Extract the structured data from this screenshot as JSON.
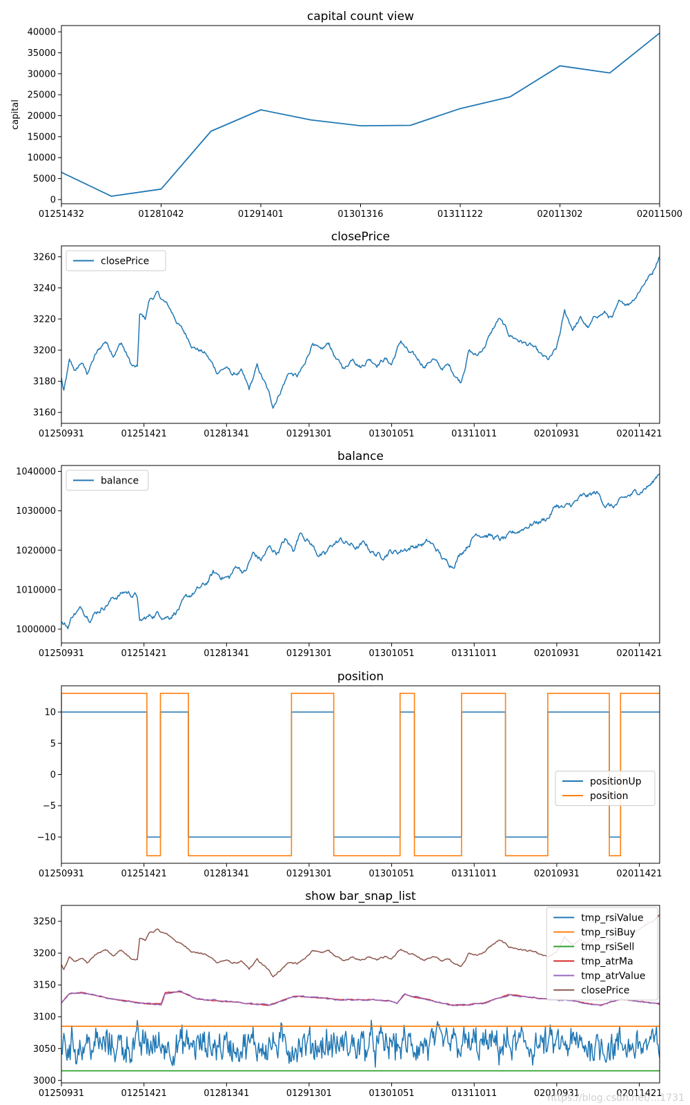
{
  "watermark": "https://blog.csdn.net/...1731",
  "colors": {
    "tmp_rsiValue": "#1f77b4",
    "tmp_rsiBuy": "#ff7f0e",
    "tmp_rsiSell": "#2ca02c",
    "tmp_atrMa": "#d62728",
    "tmp_atrValue": "#9467bd",
    "closePrice": "#8c564b",
    "blue": "#1f77b4",
    "orange": "#ff7f0e"
  },
  "chart_data": [
    {
      "type": "line",
      "title": "capital count view",
      "xlabel": "",
      "ylabel": "capital",
      "x": [
        "01251432",
        "",
        "01281042",
        "",
        "01291401",
        "",
        "01301316",
        "",
        "01311122",
        "",
        "02011302",
        "",
        "02011500"
      ],
      "series": [
        {
          "values": [
            6500,
            800,
            2500,
            16300,
            21400,
            19000,
            17600,
            17700,
            21700,
            24500,
            31900,
            30200,
            39700
          ]
        }
      ],
      "xticks": [
        "01251432",
        "01281042",
        "01291401",
        "01301316",
        "01311122",
        "02011302",
        "02011500"
      ],
      "yticks": [
        0,
        5000,
        10000,
        15000,
        20000,
        25000,
        30000,
        35000,
        40000
      ],
      "ylim": [
        -1000,
        41500
      ],
      "grid": false
    },
    {
      "type": "line",
      "title": "closePrice",
      "legend": [
        "closePrice"
      ],
      "legend_position": "upper left",
      "xticks": [
        "01250931",
        "01251421",
        "01281341",
        "01291301",
        "01301051",
        "01311011",
        "02010931",
        "02011421"
      ],
      "yticks": [
        3160,
        3180,
        3200,
        3220,
        3240,
        3260
      ],
      "ylim": [
        3153,
        3267
      ],
      "series": [
        {
          "name": "closePrice",
          "anchors": [
            [
              0,
              3182
            ],
            [
              3,
              3173
            ],
            [
              10,
              3192
            ],
            [
              18,
              3186
            ],
            [
              25,
              3192
            ],
            [
              32,
              3185
            ],
            [
              42,
              3196
            ],
            [
              55,
              3206
            ],
            [
              65,
              3198
            ],
            [
              75,
              3205
            ],
            [
              88,
              3190
            ],
            [
              95,
              3188
            ],
            [
              98,
              3222
            ],
            [
              105,
              3220
            ],
            [
              110,
              3232
            ],
            [
              120,
              3236
            ],
            [
              135,
              3227
            ],
            [
              150,
              3214
            ],
            [
              165,
              3203
            ],
            [
              180,
              3198
            ],
            [
              195,
              3186
            ],
            [
              205,
              3189
            ],
            [
              215,
              3184
            ],
            [
              225,
              3186
            ],
            [
              235,
              3174
            ],
            [
              245,
              3189
            ],
            [
              255,
              3178
            ],
            [
              265,
              3164
            ],
            [
              275,
              3175
            ],
            [
              285,
              3186
            ],
            [
              295,
              3183
            ],
            [
              305,
              3190
            ],
            [
              315,
              3206
            ],
            [
              325,
              3198
            ],
            [
              335,
              3204
            ],
            [
              345,
              3193
            ],
            [
              355,
              3188
            ],
            [
              365,
              3196
            ],
            [
              375,
              3190
            ],
            [
              385,
              3195
            ],
            [
              395,
              3192
            ],
            [
              405,
              3195
            ],
            [
              413,
              3191
            ],
            [
              425,
              3206
            ],
            [
              435,
              3198
            ],
            [
              445,
              3194
            ],
            [
              455,
              3190
            ],
            [
              465,
              3195
            ],
            [
              475,
              3188
            ],
            [
              485,
              3190
            ],
            [
              495,
              3183
            ],
            [
              500,
              3180
            ],
            [
              510,
              3200
            ],
            [
              520,
              3196
            ],
            [
              530,
              3203
            ],
            [
              540,
              3213
            ],
            [
              548,
              3220
            ],
            [
              560,
              3210
            ],
            [
              575,
              3206
            ],
            [
              590,
              3202
            ],
            [
              600,
              3196
            ],
            [
              610,
              3193
            ],
            [
              620,
              3200
            ],
            [
              630,
              3224
            ],
            [
              640,
              3214
            ],
            [
              650,
              3220
            ],
            [
              660,
              3214
            ],
            [
              670,
              3222
            ],
            [
              680,
              3224
            ],
            [
              690,
              3220
            ],
            [
              700,
              3231
            ],
            [
              710,
              3230
            ],
            [
              720,
              3236
            ],
            [
              730,
              3244
            ],
            [
              740,
              3250
            ],
            [
              749,
              3262
            ]
          ]
        }
      ],
      "n_points": 750,
      "grid": false
    },
    {
      "type": "line",
      "title": "balance",
      "legend": [
        "balance"
      ],
      "legend_position": "upper left",
      "xticks": [
        "01250931",
        "01251421",
        "01281341",
        "01291301",
        "01301051",
        "01311011",
        "02010931",
        "02011421"
      ],
      "yticks": [
        1000000,
        1010000,
        1020000,
        1030000,
        1040000
      ],
      "ylim": [
        996500,
        1041500
      ],
      "series": [
        {
          "name": "balance",
          "anchors": [
            [
              0,
              1001500
            ],
            [
              8,
              1000500
            ],
            [
              15,
              1004000
            ],
            [
              25,
              1005000
            ],
            [
              35,
              1003500
            ],
            [
              50,
              1005500
            ],
            [
              65,
              1008000
            ],
            [
              80,
              1009500
            ],
            [
              95,
              1008500
            ],
            [
              98,
              1001500
            ],
            [
              105,
              1002500
            ],
            [
              120,
              1004000
            ],
            [
              135,
              1003500
            ],
            [
              150,
              1006000
            ],
            [
              165,
              1009000
            ],
            [
              180,
              1011000
            ],
            [
              190,
              1014000
            ],
            [
              200,
              1013500
            ],
            [
              210,
              1013000
            ],
            [
              220,
              1016000
            ],
            [
              230,
              1014500
            ],
            [
              240,
              1019000
            ],
            [
              250,
              1017500
            ],
            [
              260,
              1020500
            ],
            [
              270,
              1019500
            ],
            [
              280,
              1022500
            ],
            [
              290,
              1020000
            ],
            [
              300,
              1025000
            ],
            [
              310,
              1022500
            ],
            [
              320,
              1019500
            ],
            [
              330,
              1018500
            ],
            [
              340,
              1021500
            ],
            [
              350,
              1022500
            ],
            [
              360,
              1021500
            ],
            [
              370,
              1020500
            ],
            [
              380,
              1021500
            ],
            [
              390,
              1019500
            ],
            [
              400,
              1018500
            ],
            [
              410,
              1020000
            ],
            [
              420,
              1019500
            ],
            [
              430,
              1020500
            ],
            [
              440,
              1021000
            ],
            [
              450,
              1021500
            ],
            [
              460,
              1022000
            ],
            [
              470,
              1020000
            ],
            [
              480,
              1017000
            ],
            [
              490,
              1016500
            ],
            [
              500,
              1019500
            ],
            [
              510,
              1022000
            ],
            [
              520,
              1024500
            ],
            [
              530,
              1024500
            ],
            [
              540,
              1023500
            ],
            [
              550,
              1022500
            ],
            [
              560,
              1023000
            ],
            [
              570,
              1024500
            ],
            [
              580,
              1026000
            ],
            [
              590,
              1027000
            ],
            [
              600,
              1027500
            ],
            [
              610,
              1028500
            ],
            [
              620,
              1031500
            ],
            [
              630,
              1030500
            ],
            [
              640,
              1031500
            ],
            [
              650,
              1033000
            ],
            [
              660,
              1033500
            ],
            [
              670,
              1034500
            ],
            [
              680,
              1032000
            ],
            [
              690,
              1031000
            ],
            [
              700,
              1032000
            ],
            [
              710,
              1033500
            ],
            [
              720,
              1034500
            ],
            [
              730,
              1036000
            ],
            [
              740,
              1037000
            ],
            [
              749,
              1040000
            ]
          ]
        }
      ],
      "n_points": 750,
      "grid": false
    },
    {
      "type": "line",
      "title": "position",
      "legend": [
        "positionUp",
        "position"
      ],
      "legend_position": "center right",
      "xticks": [
        "01250931",
        "01251421",
        "01281341",
        "01291301",
        "01301051",
        "01311011",
        "02010931",
        "02011421"
      ],
      "yticks": [
        -10,
        -5,
        0,
        5,
        10
      ],
      "ylim": [
        -14.2,
        14.2
      ],
      "series": [
        {
          "name": "positionUp",
          "segments": [
            [
              0,
              107,
              10
            ],
            [
              107,
              124,
              -10
            ],
            [
              124,
              159,
              10
            ],
            [
              159,
              288,
              -10
            ],
            [
              288,
              341,
              10
            ],
            [
              341,
              424,
              -10
            ],
            [
              424,
              442,
              10
            ],
            [
              442,
              501,
              -10
            ],
            [
              501,
              556,
              10
            ],
            [
              556,
              609,
              -10
            ],
            [
              609,
              686,
              10
            ],
            [
              686,
              700,
              -10
            ],
            [
              700,
              749,
              10
            ]
          ]
        },
        {
          "name": "position",
          "segments": [
            [
              0,
              107,
              13
            ],
            [
              107,
              124,
              -13
            ],
            [
              124,
              159,
              13
            ],
            [
              159,
              288,
              -13
            ],
            [
              288,
              341,
              13
            ],
            [
              341,
              424,
              -13
            ],
            [
              424,
              442,
              13
            ],
            [
              442,
              501,
              -13
            ],
            [
              501,
              556,
              13
            ],
            [
              556,
              609,
              -13
            ],
            [
              609,
              686,
              13
            ],
            [
              686,
              700,
              -13
            ],
            [
              700,
              749,
              13
            ]
          ]
        }
      ],
      "n_points": 750,
      "grid": false
    },
    {
      "type": "line",
      "title": "show bar_snap_list",
      "legend": [
        "tmp_rsiValue",
        "tmp_rsiBuy",
        "tmp_rsiSell",
        "tmp_atrMa",
        "tmp_atrValue",
        "closePrice"
      ],
      "legend_position": "upper right",
      "xticks": [
        "01250931",
        "01251421",
        "01281341",
        "01291301",
        "01301051",
        "01311011",
        "02010931",
        "02011421"
      ],
      "yticks": [
        3000,
        3050,
        3100,
        3150,
        3200,
        3250
      ],
      "ylim": [
        2996,
        3275
      ],
      "series": [
        {
          "name": "tmp_rsiValue",
          "range": [
            3005,
            3097
          ],
          "mean": 3055
        },
        {
          "name": "tmp_rsiBuy",
          "constant": 3085
        },
        {
          "name": "tmp_rsiSell",
          "constant": 3015
        },
        {
          "name": "tmp_atrMa",
          "anchors": [
            [
              0,
              3122
            ],
            [
              10,
              3136
            ],
            [
              25,
              3138
            ],
            [
              45,
              3133
            ],
            [
              65,
              3128
            ],
            [
              85,
              3125
            ],
            [
              100,
              3121
            ],
            [
              125,
              3120
            ],
            [
              130,
              3138
            ],
            [
              150,
              3139
            ],
            [
              170,
              3128
            ],
            [
              200,
              3125
            ],
            [
              230,
              3121
            ],
            [
              260,
              3118
            ],
            [
              290,
              3132
            ],
            [
              320,
              3130
            ],
            [
              350,
              3127
            ],
            [
              380,
              3127
            ],
            [
              410,
              3125
            ],
            [
              420,
              3121
            ],
            [
              430,
              3135
            ],
            [
              460,
              3126
            ],
            [
              490,
              3118
            ],
            [
              510,
              3119
            ],
            [
              530,
              3122
            ],
            [
              560,
              3135
            ],
            [
              590,
              3130
            ],
            [
              615,
              3127
            ],
            [
              640,
              3126
            ],
            [
              660,
              3120
            ],
            [
              675,
              3118
            ],
            [
              700,
              3128
            ],
            [
              725,
              3124
            ],
            [
              749,
              3120
            ]
          ]
        },
        {
          "name": "tmp_atrValue",
          "follows": "tmp_atrMa"
        },
        {
          "name": "closePrice",
          "follows": "closePrice"
        }
      ],
      "n_points": 750,
      "grid": false
    }
  ]
}
